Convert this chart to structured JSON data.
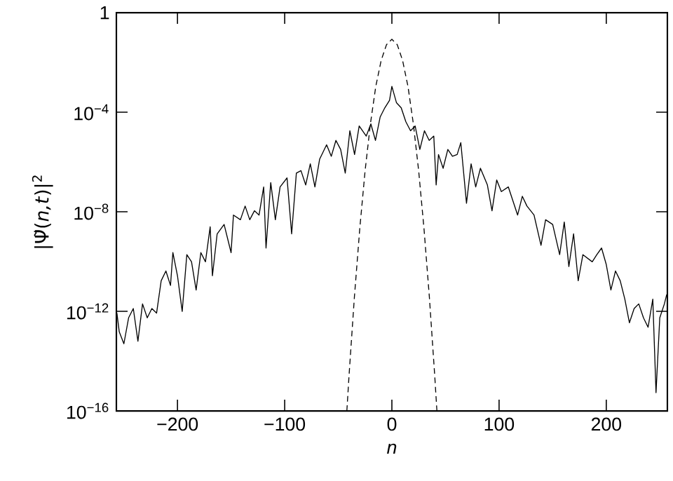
{
  "chart_data": {
    "type": "line",
    "xlabel": "*n*",
    "ylabel": "|Ψ̃(*n,t*)|$^{2}$",
    "log": "y",
    "grid": false,
    "marker": "none",
    "xlim": [
      -257,
      257
    ],
    "ylim": [
      1e-16,
      1
    ],
    "xticks": [
      {
        "value": -200,
        "label": "−200"
      },
      {
        "value": -100,
        "label": "−100"
      },
      0,
      100,
      200
    ],
    "yticks": [
      {
        "value": 1e-16,
        "label": "10$^{−16}$"
      },
      {
        "value": 1e-12,
        "label": "10$^{−12}$"
      },
      {
        "value": 1e-08,
        "label": "10$^{−8}$"
      },
      {
        "value": 0.0001,
        "label": "10$^{−4}$"
      },
      1
    ],
    "series": [
      {
        "color": "#000000",
        "line_style": "solid",
        "x": [
          -256.5,
          -254.3,
          -250,
          -245.6,
          -241.2,
          -236.9,
          -232.6,
          -228.2,
          -223.9,
          -219.5,
          -215.2,
          -210.8,
          -206.5,
          -204.3,
          -200,
          -195.6,
          -191.3,
          -186.9,
          -182.6,
          -178.2,
          -173.9,
          -169.5,
          -167.4,
          -163,
          -156.5,
          -150,
          -147.8,
          -141.3,
          -136.9,
          -132.6,
          -128.2,
          -123.9,
          -119.6,
          -117.4,
          -113.0,
          -108.7,
          -104.3,
          -97.8,
          -93.5,
          -89.1,
          -84.8,
          -80.4,
          -76.1,
          -71.8,
          -67.4,
          -60.9,
          -56.5,
          -52.2,
          -47.8,
          -43.5,
          -39.2,
          -34.8,
          -30.5,
          -23.9,
          -19.6,
          -15.3,
          -10.9,
          -6.6,
          -2.2,
          0,
          4.3,
          8.7,
          13.0,
          17.4,
          21.7,
          26.1,
          30.4,
          34.8,
          39.1,
          41.3,
          43.5,
          47.8,
          52.2,
          56.5,
          60.9,
          64.3,
          67.4,
          69.6,
          73.9,
          78.2,
          82.6,
          89.1,
          93.4,
          97.8,
          102.1,
          108.6,
          117.3,
          121.7,
          126.0,
          132.6,
          139.1,
          143.4,
          150.0,
          156.5,
          160.8,
          165.1,
          169.5,
          173.8,
          178.2,
          186.9,
          191.2,
          195.6,
          199.9,
          204.3,
          208.6,
          213,
          217.3,
          221.6,
          226,
          230.3,
          234.7,
          239,
          243.4,
          246.4,
          249.9,
          254.2,
          256.4
        ],
        "values": [
          8.5e-13,
          1.5e-13,
          5e-14,
          5.5e-13,
          1.3e-12,
          6.3e-14,
          2e-12,
          5.5e-13,
          1.3e-12,
          8.5e-13,
          1.7e-11,
          4.2e-11,
          1.1e-11,
          2.3e-10,
          2.7e-11,
          1e-12,
          1.9e-10,
          9.8e-11,
          7.2e-12,
          2.3e-10,
          9.8e-11,
          2.5e-09,
          2.7e-11,
          1.3e-09,
          3.1e-09,
          2.3e-10,
          7.4e-09,
          4.8e-09,
          1.7e-08,
          4.8e-09,
          1.1e-08,
          7.4e-09,
          1e-07,
          3.5e-10,
          1.5e-07,
          4.8e-09,
          1e-07,
          2.3e-07,
          1.3e-09,
          3.6e-07,
          4.5e-07,
          1.2e-07,
          8.5e-07,
          1e-07,
          1.3e-06,
          4.9e-06,
          1.7e-06,
          7.4e-06,
          3.2e-06,
          3.6e-07,
          1.8e-05,
          2e-06,
          2.8e-05,
          1.1e-05,
          3.4e-05,
          7.4e-06,
          6.5e-05,
          0.00015,
          0.0003,
          0.0011,
          0.00024,
          0.00015,
          4.2e-05,
          1.8e-05,
          2.8e-05,
          3.2e-06,
          1.8e-05,
          7.4e-06,
          1.1e-05,
          1.2e-07,
          2e-06,
          5.6e-07,
          3.2e-06,
          1.7e-06,
          2e-06,
          6e-06,
          2.3e-07,
          2.2e-08,
          8.5e-07,
          1e-07,
          5.6e-07,
          1.2e-07,
          1.1e-08,
          1.9e-07,
          6.5e-08,
          1e-07,
          7.4e-09,
          4.2e-08,
          1.7e-08,
          7.4e-09,
          4.5e-10,
          4.8e-09,
          3.1e-09,
          1.9e-10,
          3.9e-09,
          6.3e-11,
          1.3e-09,
          1.7e-11,
          1.9e-10,
          9.8e-11,
          1.9e-10,
          3.5e-10,
          7.9e-11,
          7.2e-12,
          4.2e-11,
          1.7e-11,
          3.1e-12,
          3.5e-13,
          1.3e-12,
          2e-12,
          5.5e-13,
          2.3e-13,
          3.1e-12,
          5.4e-16,
          5.5e-13,
          2e-12,
          4.8e-12
        ]
      },
      {
        "color": "#000000",
        "line_style": "dashed",
        "x": [
          -42,
          -40,
          -35,
          -30,
          -25,
          -20,
          -15,
          -10,
          -5,
          0,
          5,
          10,
          15,
          20,
          25,
          30,
          35,
          40,
          42
        ],
        "values": [
          1e-16,
          2.5e-15,
          3.6e-12,
          2e-09,
          4.4e-07,
          3.5e-05,
          0.0011,
          0.012,
          0.052,
          0.085,
          0.052,
          0.012,
          0.0011,
          3.5e-05,
          4.4e-07,
          2e-09,
          3.6e-12,
          2.5e-15,
          1e-16
        ]
      }
    ]
  }
}
